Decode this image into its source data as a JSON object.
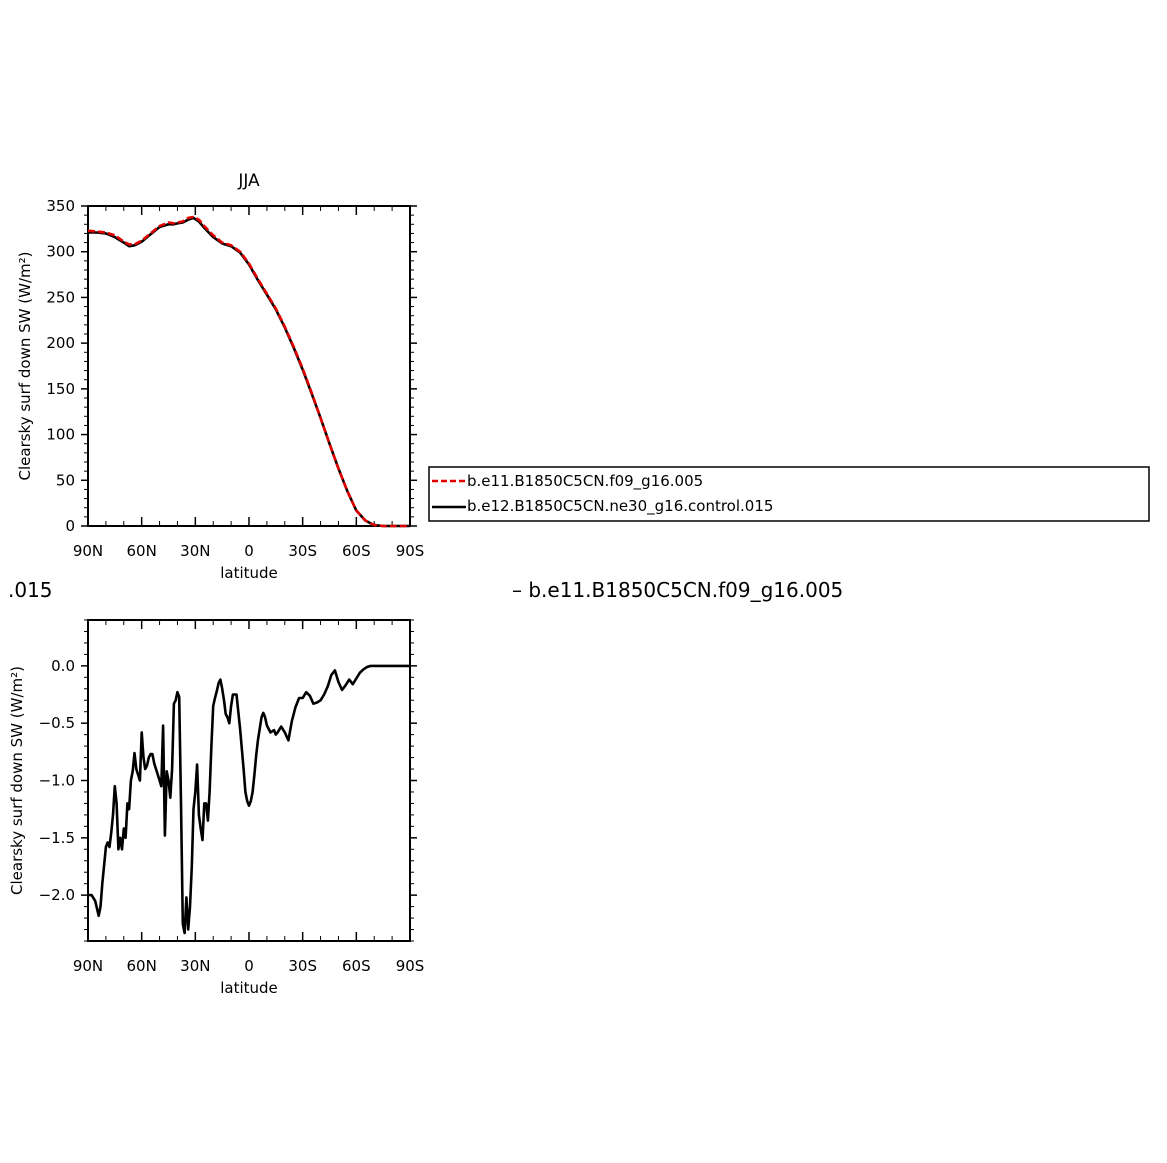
{
  "chart_data": [
    {
      "type": "line",
      "title": "JJA",
      "xlabel": "latitude",
      "ylabel": "Clearsky surf down SW (W/m²)",
      "xlim": [
        90,
        -90
      ],
      "ylim": [
        0,
        350
      ],
      "xticks": [
        {
          "value": 90,
          "label": "90N"
        },
        {
          "value": 60,
          "label": "60N"
        },
        {
          "value": 30,
          "label": "30N"
        },
        {
          "value": 0,
          "label": "0"
        },
        {
          "value": -30,
          "label": "30S"
        },
        {
          "value": -60,
          "label": "60S"
        },
        {
          "value": -90,
          "label": "90S"
        }
      ],
      "yticks": [
        0,
        50,
        100,
        150,
        200,
        250,
        300,
        350
      ],
      "series": [
        {
          "name": "b.e11.B1850C5CN.f09_g16.005",
          "color": "#e00000",
          "dash": true,
          "x": [
            90,
            85,
            80,
            75,
            70,
            67,
            64,
            60,
            55,
            50,
            45,
            42,
            40,
            37,
            34,
            31,
            28,
            25,
            20,
            15,
            10,
            5,
            0,
            -5,
            -10,
            -15,
            -20,
            -25,
            -30,
            -35,
            -40,
            -45,
            -50,
            -55,
            -60,
            -65,
            -70,
            -75,
            -80,
            -85,
            -90
          ],
          "y": [
            323,
            322,
            321,
            318,
            311,
            308,
            308,
            312,
            320,
            328,
            332,
            331,
            332,
            333,
            337,
            338,
            335,
            328,
            318,
            310,
            307,
            300,
            287,
            270,
            254,
            238,
            218,
            196,
            172,
            146,
            118,
            90,
            63,
            38,
            17,
            6,
            1,
            0,
            0,
            0,
            0
          ]
        },
        {
          "name": "b.e12.B1850C5CN.ne30_g16.control.015",
          "color": "#000000",
          "dash": false,
          "x": [
            90,
            85,
            80,
            75,
            70,
            67,
            64,
            60,
            55,
            50,
            45,
            42,
            40,
            37,
            34,
            31,
            28,
            25,
            20,
            15,
            10,
            5,
            0,
            -5,
            -10,
            -15,
            -20,
            -25,
            -30,
            -35,
            -40,
            -45,
            -50,
            -55,
            -60,
            -65,
            -70,
            -75,
            -80,
            -85,
            -90
          ],
          "y": [
            321,
            321,
            320,
            316,
            310,
            306,
            307,
            311,
            319,
            327,
            330,
            330,
            331,
            332,
            335,
            337,
            333,
            326,
            316,
            309,
            306,
            299,
            286,
            269,
            253,
            237,
            217,
            195,
            171,
            145,
            118,
            90,
            63,
            38,
            17,
            6,
            1,
            0,
            0,
            0,
            0
          ]
        }
      ],
      "legend": {
        "placement": "right-outside",
        "entries": [
          {
            "label": "b.e11.B1850C5CN.f09_g16.005",
            "color": "#e00000",
            "dash": true
          },
          {
            "label": "b.e12.B1850C5CN.ne30_g16.control.015",
            "color": "#000000",
            "dash": false
          }
        ]
      }
    },
    {
      "type": "line",
      "title": "",
      "xlabel": "latitude",
      "ylabel": "Clearsky surf down SW (W/m²)",
      "xlim": [
        90,
        -90
      ],
      "ylim": [
        -2.4,
        0.4
      ],
      "xticks": [
        {
          "value": 90,
          "label": "90N"
        },
        {
          "value": 60,
          "label": "60N"
        },
        {
          "value": 30,
          "label": "30N"
        },
        {
          "value": 0,
          "label": "0"
        },
        {
          "value": -30,
          "label": "30S"
        },
        {
          "value": -60,
          "label": "60S"
        },
        {
          "value": -90,
          "label": "90S"
        }
      ],
      "yticks": [
        {
          "value": 0.0,
          "label": "0.0"
        },
        {
          "value": -0.5,
          "label": "−0.5"
        },
        {
          "value": -1.0,
          "label": "−1.0"
        },
        {
          "value": -1.5,
          "label": "−1.5"
        },
        {
          "value": -2.0,
          "label": "−2.0"
        }
      ],
      "series": [
        {
          "color": "#000000",
          "x": [
            90,
            88,
            86,
            84,
            83,
            82,
            80,
            79,
            78,
            77,
            76,
            75,
            74,
            73,
            72,
            71,
            70,
            69,
            68,
            67,
            66,
            65,
            64,
            63,
            62,
            61,
            60,
            59,
            58,
            57,
            56,
            55,
            54,
            53,
            52,
            51,
            50,
            49,
            48,
            47,
            46,
            45,
            44,
            43,
            42,
            41,
            40,
            39,
            38,
            37,
            36,
            35,
            34,
            33,
            32,
            31,
            30,
            29,
            28,
            27,
            26,
            25,
            24,
            23,
            22,
            21,
            20,
            19,
            18,
            17,
            16,
            15,
            14,
            13,
            12,
            11,
            10,
            9,
            8,
            7,
            6,
            5,
            4,
            3,
            2,
            1,
            0,
            -1,
            -2,
            -3,
            -4,
            -5,
            -6,
            -7,
            -8,
            -9,
            -10,
            -12,
            -14,
            -15,
            -16,
            -18,
            -20,
            -22,
            -24,
            -26,
            -28,
            -30,
            -32,
            -34,
            -36,
            -38,
            -40,
            -42,
            -44,
            -46,
            -48,
            -50,
            -52,
            -54,
            -56,
            -58,
            -60,
            -62,
            -64,
            -66,
            -68,
            -70,
            -72,
            -74,
            -76,
            -78,
            -80,
            -82,
            -85,
            -88,
            -90
          ],
          "y": [
            -2.0,
            -2.0,
            -2.05,
            -2.18,
            -2.1,
            -1.9,
            -1.58,
            -1.54,
            -1.58,
            -1.45,
            -1.3,
            -1.05,
            -1.2,
            -1.6,
            -1.5,
            -1.6,
            -1.42,
            -1.5,
            -1.2,
            -1.25,
            -1.0,
            -0.92,
            -0.76,
            -0.9,
            -0.95,
            -1.0,
            -0.58,
            -0.8,
            -0.9,
            -0.87,
            -0.8,
            -0.77,
            -0.77,
            -0.85,
            -0.9,
            -0.95,
            -1.0,
            -1.05,
            -0.52,
            -1.48,
            -0.92,
            -1.0,
            -1.15,
            -0.9,
            -0.33,
            -0.3,
            -0.23,
            -0.27,
            -1.2,
            -2.25,
            -2.33,
            -2.02,
            -2.3,
            -2.1,
            -1.75,
            -1.25,
            -1.1,
            -0.86,
            -1.3,
            -1.42,
            -1.52,
            -1.2,
            -1.2,
            -1.35,
            -1.1,
            -0.7,
            -0.35,
            -0.28,
            -0.22,
            -0.15,
            -0.12,
            -0.2,
            -0.3,
            -0.42,
            -0.45,
            -0.5,
            -0.35,
            -0.25,
            -0.25,
            -0.25,
            -0.4,
            -0.55,
            -0.72,
            -0.9,
            -1.1,
            -1.18,
            -1.22,
            -1.18,
            -1.1,
            -0.95,
            -0.78,
            -0.65,
            -0.55,
            -0.45,
            -0.41,
            -0.45,
            -0.52,
            -0.58,
            -0.56,
            -0.6,
            -0.58,
            -0.53,
            -0.58,
            -0.65,
            -0.48,
            -0.36,
            -0.28,
            -0.28,
            -0.23,
            -0.26,
            -0.33,
            -0.32,
            -0.3,
            -0.25,
            -0.18,
            -0.08,
            -0.04,
            -0.14,
            -0.21,
            -0.17,
            -0.12,
            -0.16,
            -0.11,
            -0.06,
            -0.03,
            -0.01,
            0.0,
            0.0,
            0.0,
            0.0,
            0.0,
            0.0,
            0.0,
            0.0,
            0.0,
            0.0,
            0.0
          ]
        }
      ]
    }
  ],
  "captions": {
    "left_fragment": ".015",
    "right_fragment": "– b.e11.B1850C5CN.f09_g16.005"
  }
}
